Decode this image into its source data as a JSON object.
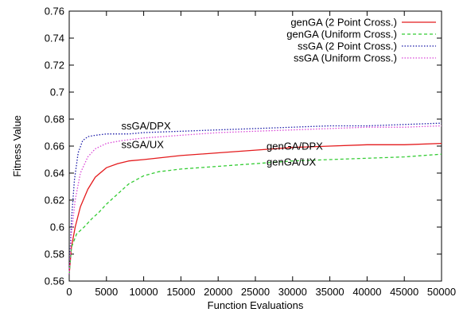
{
  "chart_data": {
    "type": "line",
    "title": "",
    "xlabel": "Function Evaluations",
    "ylabel": "Fitness Value",
    "xlim": [
      0,
      50000
    ],
    "ylim": [
      0.56,
      0.76
    ],
    "grid": false,
    "legend_position": "top-right",
    "x_ticks": [
      0,
      5000,
      10000,
      15000,
      20000,
      25000,
      30000,
      35000,
      40000,
      45000,
      50000
    ],
    "x_tick_labels": [
      "0",
      "5000",
      "10000",
      "15000",
      "20000",
      "25000",
      "30000",
      "35000",
      "40000",
      "45000",
      "50000"
    ],
    "y_ticks": [
      0.56,
      0.58,
      0.6,
      0.62,
      0.64,
      0.66,
      0.68,
      0.7,
      0.72,
      0.74,
      0.76
    ],
    "y_tick_labels": [
      "0.56",
      "0.58",
      "0.6",
      "0.62",
      "0.64",
      "0.66",
      "0.68",
      "0.7",
      "0.72",
      "0.74",
      "0.76"
    ],
    "series": [
      {
        "name": "genGA (2 Point Cross.)",
        "color": "#e41a1c",
        "dash": "solid",
        "x": [
          0,
          300,
          800,
          1500,
          2500,
          3500,
          5000,
          6500,
          8000,
          10000,
          15000,
          20000,
          25000,
          30000,
          35000,
          40000,
          45000,
          50000
        ],
        "y": [
          0.565,
          0.585,
          0.6,
          0.615,
          0.628,
          0.637,
          0.644,
          0.647,
          0.649,
          0.65,
          0.653,
          0.655,
          0.657,
          0.659,
          0.66,
          0.661,
          0.661,
          0.662
        ]
      },
      {
        "name": "genGA (Uniform Cross.)",
        "color": "#33cc33",
        "dash": "dashed",
        "x": [
          0,
          300,
          1000,
          2000,
          3000,
          4000,
          5000,
          6000,
          7000,
          8000,
          10000,
          12000,
          15000,
          20000,
          25000,
          30000,
          35000,
          40000,
          45000,
          50000
        ],
        "y": [
          0.565,
          0.585,
          0.595,
          0.6,
          0.606,
          0.611,
          0.617,
          0.622,
          0.627,
          0.632,
          0.638,
          0.641,
          0.643,
          0.645,
          0.647,
          0.649,
          0.65,
          0.651,
          0.652,
          0.654
        ]
      },
      {
        "name": "ssGA (2 Point Cross.)",
        "color": "#1a1aa8",
        "dash": "dotted",
        "x": [
          0,
          300,
          700,
          1200,
          1800,
          2500,
          3500,
          5000,
          8000,
          10000,
          15000,
          20000,
          25000,
          30000,
          35000,
          40000,
          45000,
          50000
        ],
        "y": [
          0.565,
          0.605,
          0.635,
          0.655,
          0.664,
          0.667,
          0.668,
          0.669,
          0.669,
          0.67,
          0.671,
          0.672,
          0.673,
          0.674,
          0.675,
          0.675,
          0.676,
          0.677
        ]
      },
      {
        "name": "ssGA (Uniform Cross.)",
        "color": "#d946d6",
        "dash": "dotted",
        "x": [
          0,
          300,
          800,
          1500,
          2500,
          3500,
          5000,
          7000,
          10000,
          15000,
          20000,
          25000,
          30000,
          35000,
          40000,
          45000,
          50000
        ],
        "y": [
          0.565,
          0.595,
          0.62,
          0.64,
          0.652,
          0.658,
          0.662,
          0.664,
          0.666,
          0.668,
          0.67,
          0.671,
          0.672,
          0.673,
          0.674,
          0.674,
          0.675
        ]
      }
    ],
    "annotations": [
      {
        "text": "ssGA/DPX",
        "x": 7000,
        "y": 0.6725
      },
      {
        "text": "ssGA/UX",
        "x": 7000,
        "y": 0.6585
      },
      {
        "text": "genGA/DPX",
        "x": 26500,
        "y": 0.6575
      },
      {
        "text": "genGA/UX",
        "x": 26500,
        "y": 0.6455
      }
    ]
  }
}
